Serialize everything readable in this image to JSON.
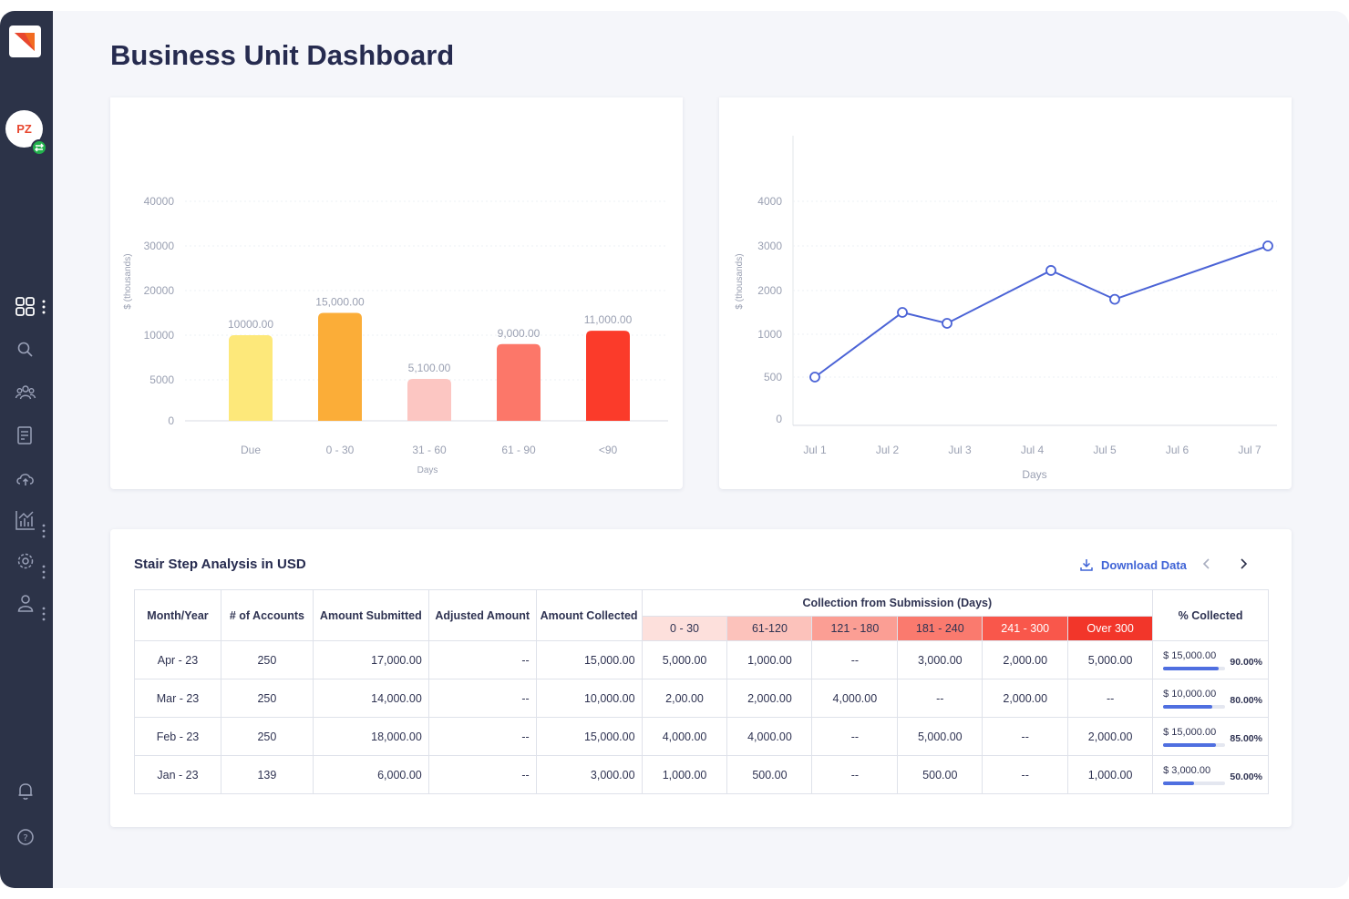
{
  "page": {
    "title": "Business Unit Dashboard"
  },
  "sidebar": {
    "avatar_initials": "PZ",
    "icons": [
      "dashboard-icon",
      "search-icon",
      "users-icon",
      "report-icon",
      "cloud-upload-icon",
      "analytics-icon",
      "settings-icon",
      "user-icon",
      "bell-icon",
      "help-icon"
    ]
  },
  "bar_chart": {
    "chart_data": {
      "type": "bar",
      "categories": [
        "Due",
        "0 - 30",
        "31 - 60",
        "61 - 90",
        "<90"
      ],
      "values": [
        10000,
        15000,
        5100,
        9000,
        11000
      ],
      "data_labels": [
        "10000.00",
        "15,000.00",
        "5,100.00",
        "9,000.00",
        "11,000.00"
      ],
      "colors": [
        "#fde87a",
        "#fbad38",
        "#fcc6c2",
        "#fc7769",
        "#fb3b2a"
      ],
      "y_ticks": [
        "0",
        "5000",
        "10000",
        "20000",
        "30000",
        "40000"
      ],
      "xlabel": "Days",
      "ylabel": "$ (thousands)",
      "grid": true
    }
  },
  "line_chart": {
    "chart_data": {
      "type": "line",
      "categories": [
        "Jul 1",
        "Jul 2",
        "Jul 3",
        "Jul 4",
        "Jul 5",
        "Jul 6",
        "Jul 7"
      ],
      "points": [
        {
          "x": "Jul 1",
          "y": 500
        },
        {
          "x": "Jul 2",
          "y": 1500
        },
        {
          "x": "Jul 3",
          "y": 1250
        },
        {
          "x": "Jul 4",
          "y": 2450
        },
        {
          "x": "Jul 5",
          "y": 1800
        },
        {
          "x": "Jul 7",
          "y": 3000
        }
      ],
      "y_ticks": [
        "0",
        "500",
        "1000",
        "2000",
        "3000",
        "4000"
      ],
      "xlabel": "Days",
      "ylabel": "$ (thousands)",
      "line_color": "#4b63d6",
      "grid": true
    }
  },
  "table": {
    "title": "Stair Step Analysis in USD",
    "download_label": "Download Data",
    "columns": {
      "month": "Month/Year",
      "accounts": "# of Accounts",
      "submitted": "Amount Submitted",
      "adjusted": "Adjusted Amount",
      "collected": "Amount Collected",
      "group": "Collection from Submission (Days)",
      "percent": "% Collected"
    },
    "buckets": [
      {
        "label": "0 - 30",
        "color": "#fde0dc"
      },
      {
        "label": "61-120",
        "color": "#fcc2bb"
      },
      {
        "label": "121 - 180",
        "color": "#fb9e94"
      },
      {
        "label": "181 - 240",
        "color": "#fa7a6e"
      },
      {
        "label": "241 - 300",
        "color": "#f9574b"
      },
      {
        "label": "Over 300",
        "color": "#f2362a"
      }
    ],
    "rows": [
      {
        "month": "Apr - 23",
        "accounts": "250",
        "submitted": "17,000.00",
        "adjusted": "--",
        "collected": "15,000.00",
        "b": [
          "5,000.00",
          "1,000.00",
          "--",
          "3,000.00",
          "2,000.00",
          "5,000.00"
        ],
        "pct_amount": "$ 15,000.00",
        "pct": "90.00%",
        "pct_value": 90
      },
      {
        "month": "Mar - 23",
        "accounts": "250",
        "submitted": "14,000.00",
        "adjusted": "--",
        "collected": "10,000.00",
        "b": [
          "2,00.00",
          "2,000.00",
          "4,000.00",
          "--",
          "2,000.00",
          "--"
        ],
        "pct_amount": "$ 10,000.00",
        "pct": "80.00%",
        "pct_value": 80
      },
      {
        "month": "Feb - 23",
        "accounts": "250",
        "submitted": "18,000.00",
        "adjusted": "--",
        "collected": "15,000.00",
        "b": [
          "4,000.00",
          "4,000.00",
          "--",
          "5,000.00",
          "--",
          "2,000.00"
        ],
        "pct_amount": "$ 15,000.00",
        "pct": "85.00%",
        "pct_value": 85
      },
      {
        "month": "Jan - 23",
        "accounts": "139",
        "submitted": "6,000.00",
        "adjusted": "--",
        "collected": "3,000.00",
        "b": [
          "1,000.00",
          "500.00",
          "--",
          "500.00",
          "--",
          "1,000.00"
        ],
        "pct_amount": "$ 3,000.00",
        "pct": "50.00%",
        "pct_value": 50
      }
    ]
  }
}
